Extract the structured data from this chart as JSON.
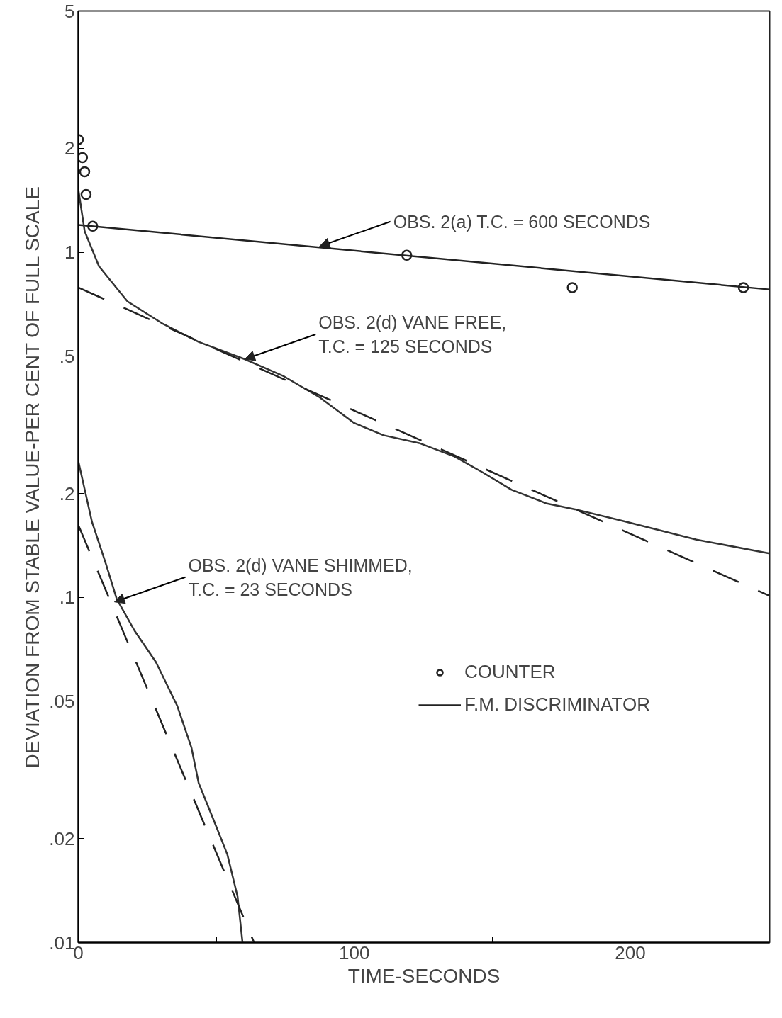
{
  "chart_data": {
    "type": "line",
    "xlabel": "TIME-SECONDS",
    "ylabel": "DEVIATION FROM STABLE VALUE-PER CENT OF FULL SCALE",
    "log": "y",
    "grid": false,
    "legend": "right",
    "xlim": [
      0,
      250.5
    ],
    "ylim": [
      0.01,
      5
    ],
    "xticks": [
      0,
      {
        "value": 50,
        "label": null
      },
      100,
      {
        "value": 150,
        "label": null
      },
      200
    ],
    "yticks": [
      {
        "value": 0.01,
        "label": ".01"
      },
      {
        "value": 0.02,
        "label": ".02"
      },
      {
        "value": 0.05,
        "label": ".05"
      },
      {
        "value": 0.1,
        "label": ".1"
      },
      {
        "value": 0.2,
        "label": ".2"
      },
      {
        "value": 0.5,
        "label": ".5"
      },
      1,
      2,
      5
    ],
    "series": [
      {
        "name": "COUNTER",
        "type": "scatter",
        "marker": "circle",
        "color": "#222222",
        "x": [
          0,
          1.5,
          2.3,
          2.8,
          5.2,
          119,
          179,
          241
        ],
        "values": [
          2.12,
          1.88,
          1.71,
          1.47,
          1.19,
          0.98,
          0.79,
          0.79
        ]
      },
      {
        "name": "F.M. DISCRIMINATOR",
        "color": "#222222",
        "line_style": "solid",
        "x": [
          0,
          250.5
        ],
        "values": [
          1.2,
          0.78
        ]
      },
      {
        "color": "#333333",
        "line_style": "solid",
        "x": [
          0,
          2.3,
          7.5,
          17.8,
          30.7,
          43.6,
          60.3,
          74.5,
          87.4,
          100,
          110.6,
          123.5,
          136.3,
          146.6,
          157,
          169.8,
          180,
          198,
          224,
          250.5
        ],
        "values": [
          1.52,
          1.15,
          0.91,
          0.72,
          0.62,
          0.55,
          0.49,
          0.437,
          0.38,
          0.32,
          0.295,
          0.28,
          0.256,
          0.23,
          0.205,
          0.187,
          0.18,
          0.166,
          0.147,
          0.134
        ]
      },
      {
        "color": "#222222",
        "line_style": "dashed",
        "x": [
          0,
          250.5
        ],
        "values": [
          0.79,
          0.101
        ]
      },
      {
        "color": "#333333",
        "line_style": "solid",
        "x": [
          0,
          4.9,
          10,
          13.9,
          20.4,
          28.1,
          35.8,
          41,
          43.6,
          48.7,
          54,
          57.7,
          59.5
        ],
        "values": [
          0.248,
          0.166,
          0.125,
          0.099,
          0.08,
          0.065,
          0.0486,
          0.0367,
          0.029,
          0.023,
          0.018,
          0.0136,
          0.01
        ]
      },
      {
        "color": "#222222",
        "line_style": "dashed",
        "x": [
          0,
          63.7
        ],
        "values": [
          0.162,
          0.01
        ]
      }
    ],
    "annotations": [
      {
        "text": "OBS. 2(a)  T.C. = 600 SECONDS",
        "x": 87.4,
        "y": 1.04
      },
      {
        "text": "OBS. 2(d)  VANE FREE,\n              T.C. = 125 SECONDS",
        "x": 60.3,
        "y": 0.49
      },
      {
        "text": "OBS. 2(d)  VANE SHIMMED,\n              T.C. = 23 SECONDS",
        "x": 13.1,
        "y": 0.097
      }
    ]
  }
}
